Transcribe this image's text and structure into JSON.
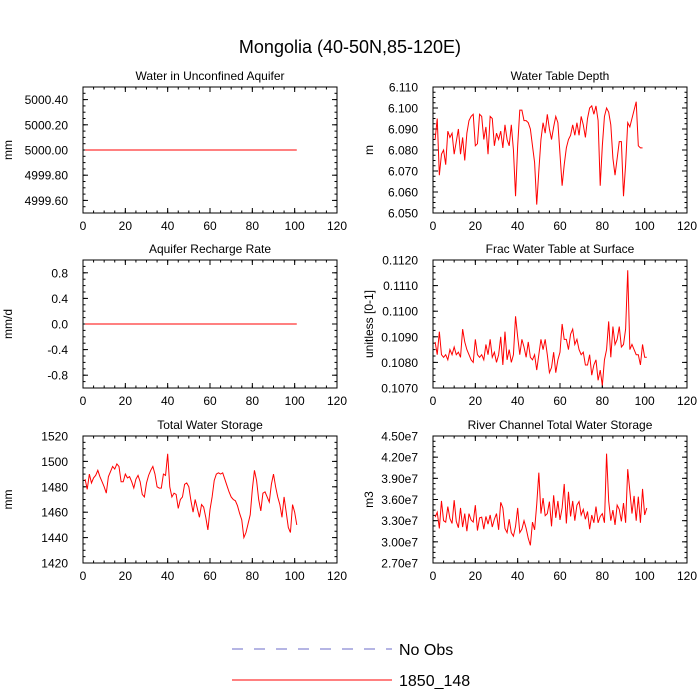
{
  "figure": {
    "title": "Mongolia (40-50N,85-120E)",
    "colors": {
      "obs": "#6b6bc8",
      "model": "#ff0000",
      "axis": "#000000",
      "background": "#ffffff"
    }
  },
  "legend": {
    "position": "bottom-center",
    "entries": [
      {
        "label": "No Obs",
        "style": "dashed",
        "color": "#6b6bc8"
      },
      {
        "label": "1850_148",
        "style": "solid",
        "color": "#ff0000"
      }
    ]
  },
  "chart_data": [
    {
      "type": "line",
      "title": "Water in Unconfined Aquifer",
      "ylabel": "mm",
      "xlim": [
        0,
        120
      ],
      "ylim": [
        4999.5,
        5000.5
      ],
      "xticks": [
        0,
        20,
        40,
        60,
        80,
        100,
        120
      ],
      "xtick_labels": [
        "0",
        "20",
        "40",
        "60",
        "80",
        "100",
        "120"
      ],
      "yticks": [
        4999.6,
        4999.8,
        5000.0,
        5000.2,
        5000.4
      ],
      "ytick_labels": [
        "4999.60",
        "4999.80",
        "5000.00",
        "5000.20",
        "5000.40"
      ],
      "series": [
        {
          "name": "1850_148",
          "color": "#ff0000",
          "x_start": 1,
          "x_step": 1,
          "values": [
            5000,
            5000,
            5000,
            5000,
            5000,
            5000,
            5000,
            5000,
            5000,
            5000,
            5000,
            5000,
            5000,
            5000,
            5000,
            5000,
            5000,
            5000,
            5000,
            5000,
            5000,
            5000,
            5000,
            5000,
            5000,
            5000,
            5000,
            5000,
            5000,
            5000,
            5000,
            5000,
            5000,
            5000,
            5000,
            5000,
            5000,
            5000,
            5000,
            5000,
            5000,
            5000,
            5000,
            5000,
            5000,
            5000,
            5000,
            5000,
            5000,
            5000,
            5000,
            5000,
            5000,
            5000,
            5000,
            5000,
            5000,
            5000,
            5000,
            5000,
            5000,
            5000,
            5000,
            5000,
            5000,
            5000,
            5000,
            5000,
            5000,
            5000,
            5000,
            5000,
            5000,
            5000,
            5000,
            5000,
            5000,
            5000,
            5000,
            5000,
            5000,
            5000,
            5000,
            5000,
            5000,
            5000,
            5000,
            5000,
            5000,
            5000,
            5000,
            5000,
            5000,
            5000,
            5000,
            5000,
            5000,
            5000,
            5000,
            5000,
            5000
          ]
        }
      ]
    },
    {
      "type": "line",
      "title": "Water Table Depth",
      "ylabel": "m",
      "xlim": [
        0,
        120
      ],
      "ylim": [
        6.05,
        6.11
      ],
      "xticks": [
        0,
        20,
        40,
        60,
        80,
        100,
        120
      ],
      "xtick_labels": [
        "0",
        "20",
        "40",
        "60",
        "80",
        "100",
        "120"
      ],
      "yticks": [
        6.05,
        6.06,
        6.07,
        6.08,
        6.09,
        6.1,
        6.11
      ],
      "ytick_labels": [
        "6.050",
        "6.060",
        "6.070",
        "6.080",
        "6.090",
        "6.100",
        "6.110"
      ],
      "series": [
        {
          "name": "1850_148",
          "color": "#ff0000",
          "x_start": 1,
          "x_step": 1,
          "values": [
            6.085,
            6.095,
            6.068,
            6.078,
            6.08,
            6.073,
            6.089,
            6.086,
            6.088,
            6.078,
            6.084,
            6.09,
            6.078,
            6.086,
            6.075,
            6.088,
            6.094,
            6.096,
            6.097,
            6.082,
            6.083,
            6.097,
            6.096,
            6.085,
            6.091,
            6.078,
            6.096,
            6.095,
            6.082,
            6.088,
            6.085,
            6.089,
            6.081,
            6.092,
            6.085,
            6.082,
            6.092,
            6.08,
            6.058,
            6.082,
            6.099,
            6.099,
            6.094,
            6.094,
            6.093,
            6.09,
            6.082,
            6.074,
            6.054,
            6.07,
            6.085,
            6.093,
            6.088,
            6.097,
            6.09,
            6.085,
            6.091,
            6.096,
            6.093,
            6.078,
            6.063,
            6.073,
            6.081,
            6.085,
            6.087,
            6.092,
            6.087,
            6.093,
            6.087,
            6.096,
            6.092,
            6.086,
            6.095,
            6.1,
            6.101,
            6.097,
            6.101,
            6.094,
            6.063,
            6.082,
            6.096,
            6.1,
            6.098,
            6.092,
            6.076,
            6.068,
            6.076,
            6.084,
            6.084,
            6.058,
            6.073,
            6.093,
            6.091,
            6.095,
            6.099,
            6.103,
            6.082,
            6.081,
            6.081
          ]
        }
      ]
    },
    {
      "type": "line",
      "title": "Aquifer Recharge Rate",
      "ylabel": "mm/d",
      "xlim": [
        0,
        120
      ],
      "ylim": [
        -1.0,
        1.0
      ],
      "xticks": [
        0,
        20,
        40,
        60,
        80,
        100,
        120
      ],
      "xtick_labels": [
        "0",
        "20",
        "40",
        "60",
        "80",
        "100",
        "120"
      ],
      "yticks": [
        -0.8,
        -0.4,
        0.0,
        0.4,
        0.8
      ],
      "ytick_labels": [
        "-0.8",
        "-0.4",
        "0.0",
        "0.4",
        "0.8"
      ],
      "series": [
        {
          "name": "1850_148",
          "color": "#ff0000",
          "x_start": 1,
          "x_step": 1,
          "values": [
            0,
            0,
            0,
            0,
            0,
            0,
            0,
            0,
            0,
            0,
            0,
            0,
            0,
            0,
            0,
            0,
            0,
            0,
            0,
            0,
            0,
            0,
            0,
            0,
            0,
            0,
            0,
            0,
            0,
            0,
            0,
            0,
            0,
            0,
            0,
            0,
            0,
            0,
            0,
            0,
            0,
            0,
            0,
            0,
            0,
            0,
            0,
            0,
            0,
            0,
            0,
            0,
            0,
            0,
            0,
            0,
            0,
            0,
            0,
            0,
            0,
            0,
            0,
            0,
            0,
            0,
            0,
            0,
            0,
            0,
            0,
            0,
            0,
            0,
            0,
            0,
            0,
            0,
            0,
            0,
            0,
            0,
            0,
            0,
            0,
            0,
            0,
            0,
            0,
            0,
            0,
            0,
            0,
            0,
            0,
            0,
            0,
            0,
            0,
            0,
            0
          ]
        }
      ]
    },
    {
      "type": "line",
      "title": "Frac Water Table at Surface",
      "ylabel": "unitless [0-1]",
      "xlim": [
        0,
        120
      ],
      "ylim": [
        0.107,
        0.112
      ],
      "xticks": [
        0,
        20,
        40,
        60,
        80,
        100,
        120
      ],
      "xtick_labels": [
        "0",
        "20",
        "40",
        "60",
        "80",
        "100",
        "120"
      ],
      "yticks": [
        0.107,
        0.108,
        0.109,
        0.11,
        0.111,
        0.112
      ],
      "ytick_labels": [
        "0.1070",
        "0.1080",
        "0.1090",
        "0.1100",
        "0.1110",
        "0.1120"
      ],
      "series": [
        {
          "name": "1850_148",
          "color": "#ff0000",
          "x_start": 1,
          "x_step": 1,
          "values": [
            0.1088,
            0.1083,
            0.1092,
            0.1083,
            0.1082,
            0.1083,
            0.1081,
            0.1085,
            0.1083,
            0.1086,
            0.1083,
            0.1084,
            0.1082,
            0.1093,
            0.1088,
            0.1085,
            0.1083,
            0.1081,
            0.108,
            0.1089,
            0.1083,
            0.1082,
            0.1083,
            0.1081,
            0.1087,
            0.1083,
            0.1089,
            0.1082,
            0.1084,
            0.108,
            0.1083,
            0.109,
            0.1079,
            0.1092,
            0.1081,
            0.1085,
            0.108,
            0.1083,
            0.1098,
            0.109,
            0.1083,
            0.1089,
            0.1086,
            0.1082,
            0.1088,
            0.1082,
            0.1081,
            0.1083,
            0.1077,
            0.1083,
            0.1089,
            0.1085,
            0.1089,
            0.1083,
            0.1076,
            0.1078,
            0.1084,
            0.1076,
            0.1081,
            0.1084,
            0.1095,
            0.1089,
            0.1089,
            0.1085,
            0.1091,
            0.1093,
            0.1087,
            0.1089,
            0.1085,
            0.1083,
            0.1084,
            0.1079,
            0.1079,
            0.1083,
            0.1075,
            0.1079,
            0.1081,
            0.1073,
            0.1077,
            0.1071,
            0.1081,
            0.1085,
            0.1096,
            0.1082,
            0.1094,
            0.1087,
            0.1089,
            0.1094,
            0.1086,
            0.1087,
            0.1093,
            0.1116,
            0.1085,
            0.1087,
            0.1085,
            0.1083,
            0.1083,
            0.1079,
            0.1087,
            0.1082,
            0.1082
          ]
        }
      ]
    },
    {
      "type": "line",
      "title": "Total Water Storage",
      "ylabel": "mm",
      "xlim": [
        0,
        120
      ],
      "ylim": [
        1420,
        1520
      ],
      "xticks": [
        0,
        20,
        40,
        60,
        80,
        100,
        120
      ],
      "xtick_labels": [
        "0",
        "20",
        "40",
        "60",
        "80",
        "100",
        "120"
      ],
      "yticks": [
        1420,
        1440,
        1460,
        1480,
        1500,
        1520
      ],
      "ytick_labels": [
        "1420",
        "1440",
        "1460",
        "1480",
        "1500",
        "1520"
      ],
      "series": [
        {
          "name": "1850_148",
          "color": "#ff0000",
          "x_start": 1,
          "x_step": 1,
          "values": [
            1486,
            1478,
            1490,
            1483,
            1487,
            1489,
            1493,
            1488,
            1484,
            1480,
            1475,
            1488,
            1492,
            1496,
            1494,
            1498,
            1496,
            1484,
            1484,
            1490,
            1487,
            1488,
            1484,
            1479,
            1486,
            1489,
            1484,
            1474,
            1472,
            1483,
            1489,
            1493,
            1496,
            1490,
            1480,
            1479,
            1479,
            1490,
            1489,
            1506,
            1480,
            1472,
            1475,
            1474,
            1463,
            1470,
            1472,
            1482,
            1483,
            1480,
            1469,
            1460,
            1470,
            1463,
            1456,
            1466,
            1464,
            1456,
            1446,
            1462,
            1472,
            1485,
            1490,
            1491,
            1490,
            1491,
            1486,
            1481,
            1476,
            1472,
            1470,
            1469,
            1465,
            1459,
            1454,
            1440,
            1444,
            1451,
            1458,
            1478,
            1493,
            1485,
            1470,
            1461,
            1475,
            1476,
            1472,
            1468,
            1482,
            1490,
            1480,
            1472,
            1466,
            1456,
            1472,
            1460,
            1448,
            1444,
            1466,
            1460,
            1450
          ]
        }
      ]
    },
    {
      "type": "line",
      "title": "River Channel Total Water Storage",
      "ylabel": "m3",
      "xlim": [
        0,
        120
      ],
      "ylim": [
        27000000,
        45000000
      ],
      "xticks": [
        0,
        20,
        40,
        60,
        80,
        100,
        120
      ],
      "xtick_labels": [
        "0",
        "20",
        "40",
        "60",
        "80",
        "100",
        "120"
      ],
      "yticks": [
        27000000,
        30000000,
        33000000,
        36000000,
        39000000,
        42000000,
        45000000
      ],
      "ytick_labels": [
        "2.70e7",
        "3.00e7",
        "3.30e7",
        "3.60e7",
        "3.90e7",
        "4.20e7",
        "4.50e7"
      ],
      "series": [
        {
          "name": "1850_148",
          "color": "#ff0000",
          "x_start": 1,
          "x_step": 1,
          "values": [
            33500000,
            34200000,
            31900000,
            35800000,
            33000000,
            32800000,
            35000000,
            33300000,
            32600000,
            35900000,
            32900000,
            32000000,
            34800000,
            32100000,
            34000000,
            31500000,
            34000000,
            33100000,
            32800000,
            35200000,
            31600000,
            33400000,
            33500000,
            31800000,
            33600000,
            32500000,
            33800000,
            32100000,
            33200000,
            34000000,
            31700000,
            35600000,
            34800000,
            31900000,
            31300000,
            33200000,
            31300000,
            30800000,
            32200000,
            34800000,
            31300000,
            31800000,
            33000000,
            31900000,
            30500000,
            29500000,
            32800000,
            31700000,
            35300000,
            39800000,
            34000000,
            36200000,
            33700000,
            34000000,
            35700000,
            32200000,
            36600000,
            33400000,
            35800000,
            33100000,
            34800000,
            38200000,
            32600000,
            37100000,
            33600000,
            35800000,
            33000000,
            35200000,
            35700000,
            33800000,
            34600000,
            33200000,
            34300000,
            31800000,
            33800000,
            32700000,
            35000000,
            32700000,
            33600000,
            34000000,
            32700000,
            42500000,
            35800000,
            33000000,
            34500000,
            32400000,
            35200000,
            34600000,
            32900000,
            35500000,
            32700000,
            40300000,
            37200000,
            34000000,
            36500000,
            33000000,
            36400000,
            32700000,
            37500000,
            33800000,
            34800000
          ]
        }
      ]
    }
  ]
}
